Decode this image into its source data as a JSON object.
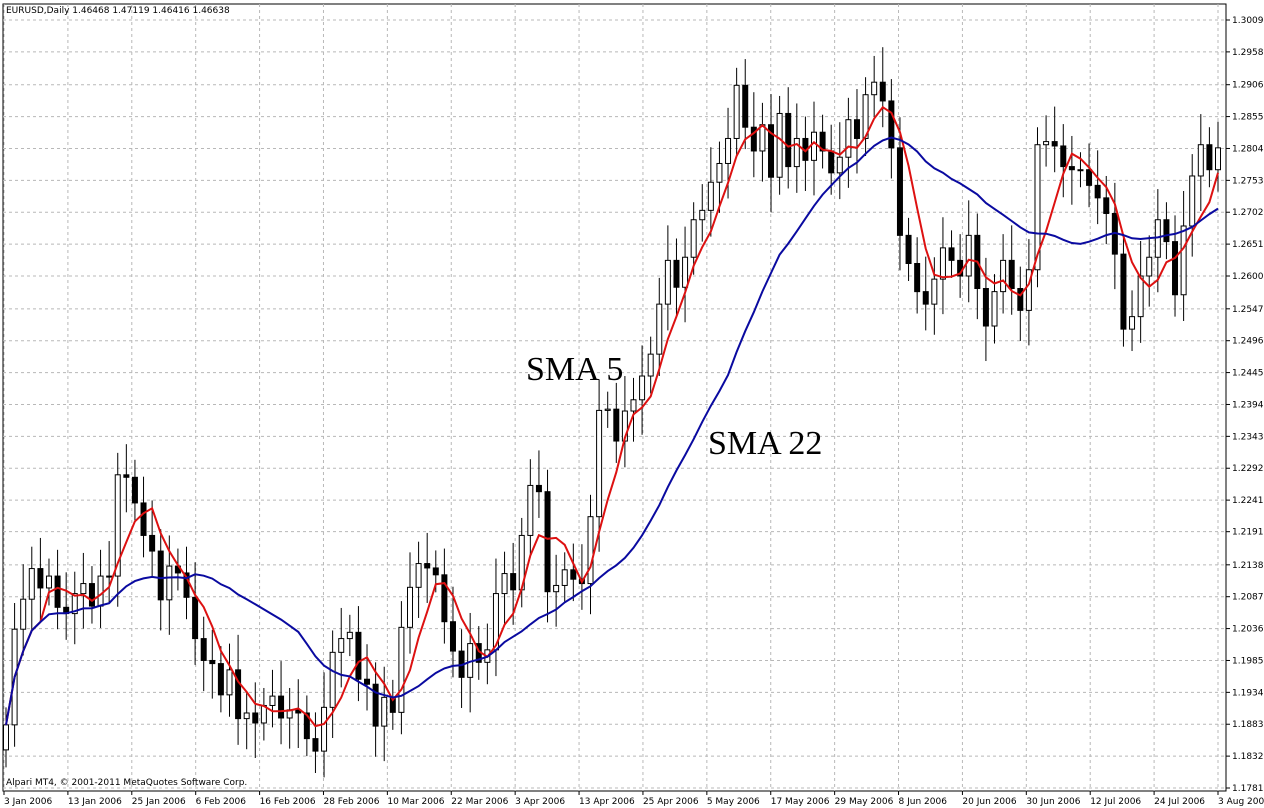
{
  "chart_data": {
    "type": "candlestick",
    "header_text": "EURUSD,Daily  1.46468 1.47119 1.46416 1.46638",
    "footer_text": "Alpari MT4, © 2001-2011 MetaQuotes Software Corp.",
    "y_ticks": [
      "1.30095",
      "1.29585",
      "1.29060",
      "1.28550",
      "1.28040",
      "1.27530",
      "1.27020",
      "1.26510",
      "1.26000",
      "1.25475",
      "1.24965",
      "1.24455",
      "1.23945",
      "1.23435",
      "1.22925",
      "1.22415",
      "1.21910",
      "1.21380",
      "1.20870",
      "1.20360",
      "1.19850",
      "1.19340",
      "1.18830",
      "1.18320",
      "1.17810"
    ],
    "ylim": [
      1.1781,
      1.30095
    ],
    "x_labels": [
      "3 Jan 2006",
      "13 Jan 2006",
      "25 Jan 2006",
      "6 Feb 2006",
      "16 Feb 2006",
      "28 Feb 2006",
      "10 Mar 2006",
      "22 Mar 2006",
      "3 Apr 2006",
      "13 Apr 2006",
      "25 Apr 2006",
      "5 May 2006",
      "17 May 2006",
      "29 May 2006",
      "8 Jun 2006",
      "20 Jun 2006",
      "30 Jun 2006",
      "12 Jul 2006",
      "24 Jul 2006",
      "3 Aug 2006"
    ],
    "candles_close": [
      1.1882,
      1.2035,
      1.2083,
      1.2132,
      1.2101,
      1.212,
      1.207,
      1.206,
      1.2092,
      1.2108,
      1.2072,
      1.212,
      1.212,
      1.2282,
      1.2278,
      1.2237,
      1.2185,
      1.216,
      1.2082,
      1.2136,
      1.2125,
      1.2086,
      1.202,
      1.1985,
      1.198,
      1.193,
      1.197,
      1.1892,
      1.1901,
      1.1885,
      1.1913,
      1.1928,
      1.1893,
      1.1906,
      1.1901,
      1.186,
      1.184,
      1.191,
      1.1998,
      1.202,
      1.203,
      1.1955,
      1.1947,
      1.188,
      1.1926,
      1.1902,
      1.2038,
      1.2102,
      1.214,
      1.2133,
      1.2122,
      1.2047,
      1.2,
      1.1958,
      1.2012,
      1.1982,
      1.2002,
      1.2092,
      1.2124,
      1.2098,
      1.2185,
      1.2265,
      1.2255,
      1.2095,
      1.2105,
      1.213,
      1.2115,
      1.2108,
      1.2215,
      1.2385,
      1.2387,
      1.2336,
      1.2384,
      1.2402,
      1.244,
      1.2475,
      1.2555,
      1.2625,
      1.2582,
      1.263,
      1.269,
      1.2705,
      1.275,
      1.278,
      1.282,
      1.2905,
      1.2838,
      1.28,
      1.2842,
      1.2758,
      1.286,
      1.2775,
      1.282,
      1.2785,
      1.283,
      1.28,
      1.2765,
      1.279,
      1.285,
      1.282,
      1.289,
      1.291,
      1.288,
      1.2805,
      1.2665,
      1.262,
      1.2575,
      1.2555,
      1.2595,
      1.2645,
      1.2625,
      1.26,
      1.2665,
      1.258,
      1.252,
      1.2575,
      1.2625,
      1.258,
      1.2545,
      1.261,
      1.281,
      1.2815,
      1.2808,
      1.2775,
      1.277,
      1.277,
      1.2745,
      1.2725,
      1.27,
      1.2635,
      1.2515,
      1.2535,
      1.26,
      1.263,
      1.269,
      1.2655,
      1.257,
      1.268,
      1.276,
      1.281,
      1.277,
      1.2805
    ],
    "series": [
      {
        "name": "SMA 5",
        "color": "#dd1111"
      },
      {
        "name": "SMA 22",
        "color": "#0a0aa0"
      }
    ],
    "annotations": [
      "SMA 5",
      "SMA 22"
    ]
  }
}
